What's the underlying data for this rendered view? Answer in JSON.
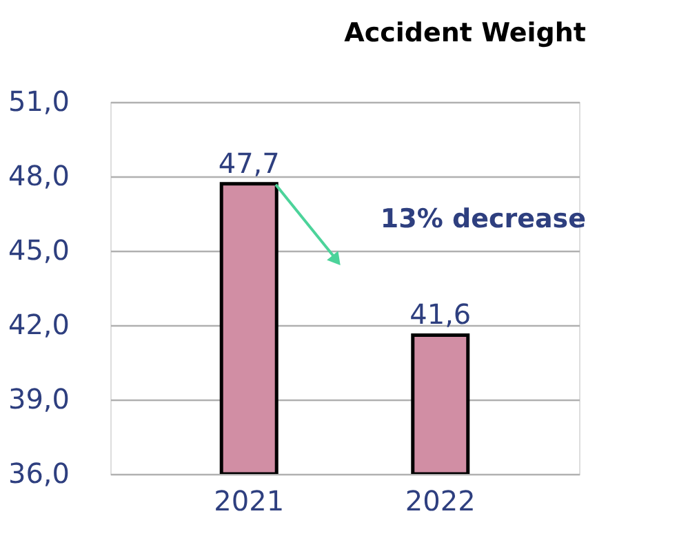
{
  "chart_data": {
    "type": "bar",
    "title": "Accident Weight",
    "categories": [
      "2021",
      "2022"
    ],
    "values": [
      47.7,
      41.6
    ],
    "value_labels": [
      "47,7",
      "41,6"
    ],
    "colors": [
      "#d18ea4",
      "#d18ea4"
    ],
    "ylim": [
      36,
      51
    ],
    "yticks": [
      {
        "value": 36,
        "label": "36,0"
      },
      {
        "value": 39,
        "label": "39,0"
      },
      {
        "value": 42,
        "label": "42,0"
      },
      {
        "value": 45,
        "label": "45,0"
      },
      {
        "value": 48,
        "label": "48,0"
      },
      {
        "value": 51,
        "label": "51,0"
      }
    ],
    "grid": "y",
    "annotations": [
      "13% decrease"
    ]
  }
}
